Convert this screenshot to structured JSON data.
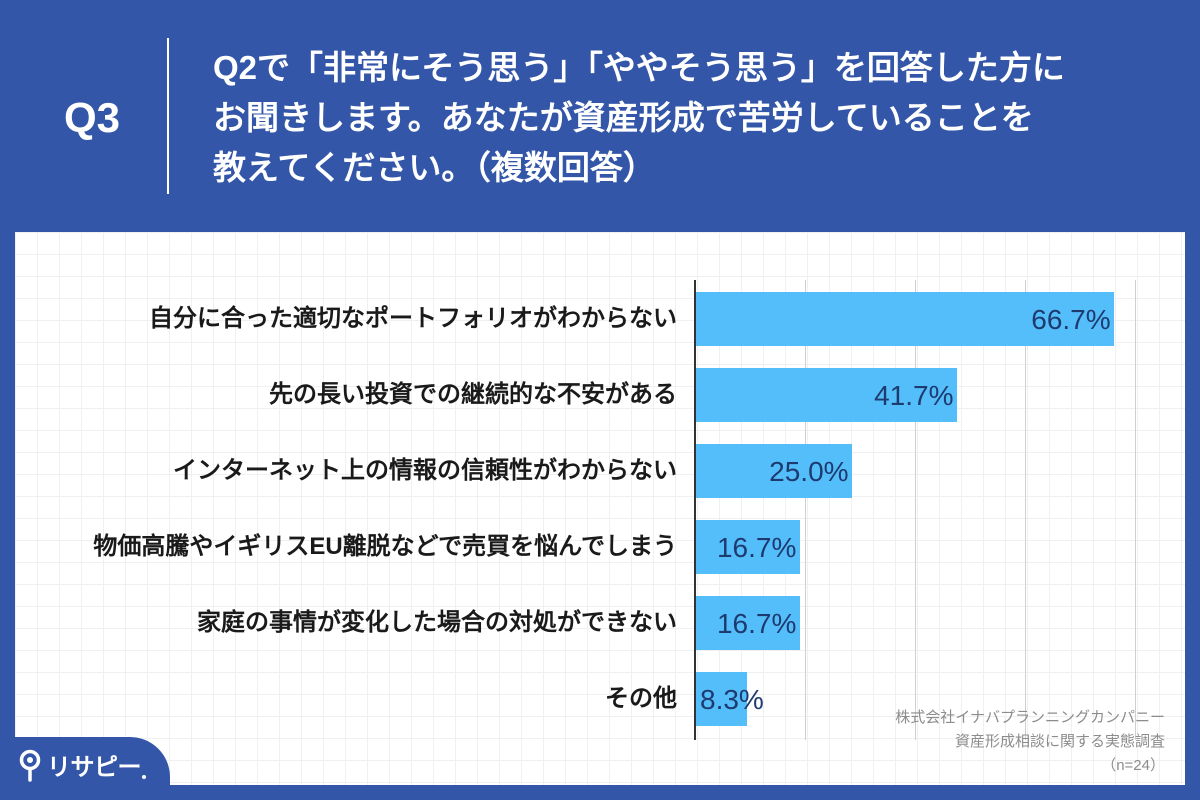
{
  "header": {
    "question_number": "Q3",
    "question_lines": [
      "Q2で「非常にそう思う」「ややそう思う」を回答した方に",
      "お聞きします。あなたが資産形成で苦労していることを",
      "教えてください。（複数回答）"
    ]
  },
  "colors": {
    "background": "#3356A8",
    "bar": "#54BEFB",
    "value_label": "#1E3B70",
    "category_label": "#1A1A1A",
    "gridline": "#CFCFCF",
    "axis": "#333333",
    "source_text": "#8C8C8C"
  },
  "chart_data": {
    "type": "bar",
    "orientation": "horizontal",
    "categories": [
      "自分に合った適切なポートフォリオがわからない",
      "先の長い投資での継続的な不安がある",
      "インターネット上の情報の信頼性がわからない",
      "物価高騰やイギリスEU離脱などで売買を悩んでしまう",
      "家庭の事情が変化した場合の対処ができない",
      "その他"
    ],
    "values": [
      66.7,
      41.7,
      25.0,
      16.7,
      16.7,
      8.3
    ],
    "value_labels": [
      "66.7%",
      "41.7%",
      "25.0%",
      "16.7%",
      "16.7%",
      "8.3%"
    ],
    "unit": "%",
    "xlim": [
      0,
      70
    ],
    "gridlines": [
      17.5,
      35,
      52.5,
      70
    ],
    "grid": true,
    "legend": "none"
  },
  "source": {
    "lines": [
      "株式会社イナバプランニングカンパニー",
      "資産形成相談に関する実態調査",
      "（n=24）"
    ]
  },
  "logo": {
    "text": "リサピー",
    "icon": "pin-icon"
  }
}
